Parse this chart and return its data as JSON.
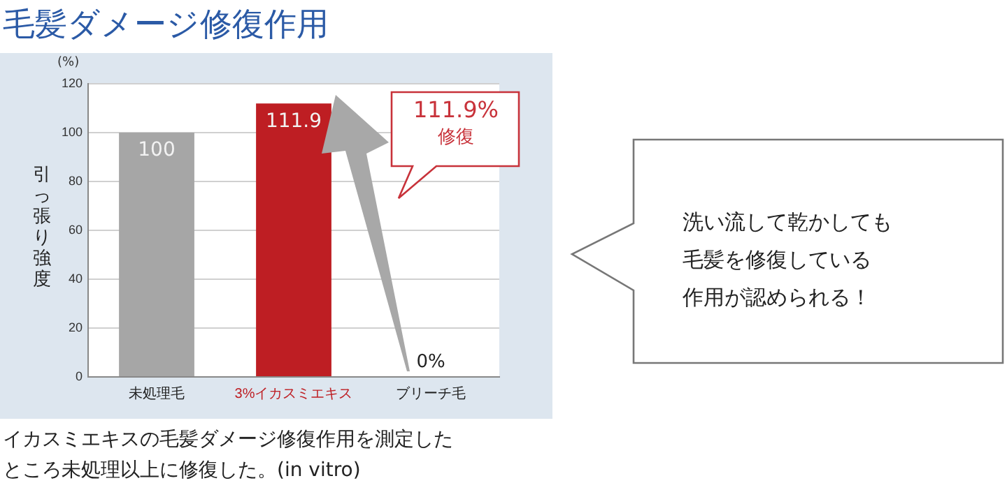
{
  "chart_data": {
    "type": "bar",
    "title": "毛髪ダメージ修復作用",
    "ylabel": "引っ張り強度",
    "categories": [
      "未処理毛",
      "3%イカスミエキス",
      "ブリーチ毛"
    ],
    "values": [
      100,
      111.9,
      0
    ],
    "colors": [
      "#a6a6a6",
      "#be1e23",
      "#a6a6a6"
    ],
    "value_labels": [
      "100",
      "111.9",
      "0%"
    ],
    "ylim": [
      0,
      120
    ],
    "yticks": [
      0,
      20,
      40,
      60,
      80,
      100,
      120
    ],
    "grid": "y",
    "legend": false,
    "annotations": [
      "(%)",
      "111.9%",
      "修復",
      "洗い流して乾かしても",
      "毛髪を修復している",
      "作用が認められる！",
      "イカスミエキスの毛髪ダメージ修復作用を測定した",
      "ところ未処理以上に修復した。(in vitro)"
    ]
  }
}
